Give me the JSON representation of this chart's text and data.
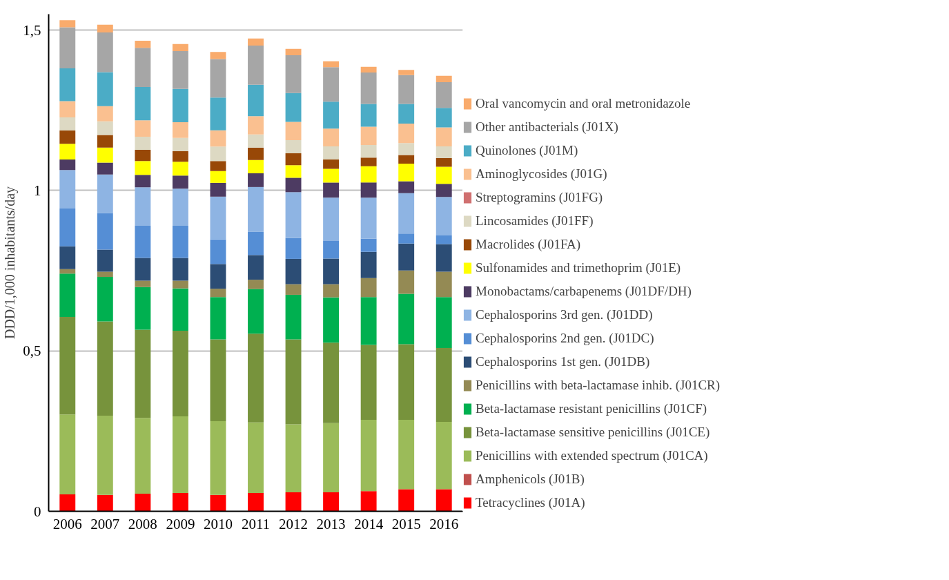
{
  "chart_data": {
    "type": "bar",
    "stacked": true,
    "ylabel": "DDD/1,000 inhabitants/day",
    "categories": [
      "2006",
      "2007",
      "2008",
      "2009",
      "2010",
      "2011",
      "2012",
      "2013",
      "2014",
      "2015",
      "2016"
    ],
    "ylim": [
      0,
      1.55
    ],
    "yticks": [
      {
        "value": 0,
        "label": "0"
      },
      {
        "value": 0.5,
        "label": "0,5"
      },
      {
        "value": 1,
        "label": "1"
      },
      {
        "value": 1.5,
        "label": "1,5"
      }
    ],
    "grid": "y",
    "legend": "right",
    "series": [
      {
        "name": "Tetracyclines (J01A)",
        "color": "#ff0000",
        "values": [
          0.053,
          0.051,
          0.055,
          0.057,
          0.051,
          0.057,
          0.059,
          0.059,
          0.063,
          0.069,
          0.069
        ]
      },
      {
        "name": "Amphenicols (J01B)",
        "color": "#c0504d",
        "values": [
          0,
          0,
          0,
          0,
          0,
          0,
          0,
          0,
          0,
          0,
          0
        ]
      },
      {
        "name": "Penicillins with extended spectrum (J01CA)",
        "color": "#9bbb59",
        "values": [
          0.249,
          0.247,
          0.236,
          0.239,
          0.23,
          0.22,
          0.212,
          0.216,
          0.222,
          0.216,
          0.21
        ]
      },
      {
        "name": "Beta-lactamase sensitive penicillins (J01CE)",
        "color": "#77933c",
        "values": [
          0.304,
          0.294,
          0.275,
          0.267,
          0.255,
          0.277,
          0.265,
          0.251,
          0.234,
          0.236,
          0.23
        ]
      },
      {
        "name": "Beta-lactamase resistant penicillins (J01CF)",
        "color": "#00b050",
        "values": [
          0.135,
          0.139,
          0.133,
          0.132,
          0.132,
          0.139,
          0.139,
          0.141,
          0.149,
          0.157,
          0.159
        ]
      },
      {
        "name": "Penicillins with beta-lactamase inhib. (J01CR)",
        "color": "#948a54",
        "values": [
          0.014,
          0.016,
          0.02,
          0.024,
          0.026,
          0.029,
          0.033,
          0.041,
          0.059,
          0.073,
          0.079
        ]
      },
      {
        "name": "Cephalosporins 1st gen. (J01DB)",
        "color": "#2c4d75",
        "values": [
          0.071,
          0.069,
          0.071,
          0.071,
          0.077,
          0.077,
          0.079,
          0.08,
          0.082,
          0.084,
          0.086
        ]
      },
      {
        "name": "Cephalosporins 2nd gen. (J01DC)",
        "color": "#558ed5",
        "values": [
          0.118,
          0.114,
          0.1,
          0.1,
          0.077,
          0.073,
          0.065,
          0.055,
          0.041,
          0.031,
          0.027
        ]
      },
      {
        "name": "Cephalosporins 3rd gen. (J01DD)",
        "color": "#8eb4e3",
        "values": [
          0.12,
          0.12,
          0.12,
          0.116,
          0.133,
          0.139,
          0.143,
          0.135,
          0.128,
          0.126,
          0.12
        ]
      },
      {
        "name": "Monobactams/carbapenems (J01DF/DH)",
        "color": "#4d3b62",
        "values": [
          0.033,
          0.037,
          0.039,
          0.041,
          0.043,
          0.043,
          0.045,
          0.047,
          0.047,
          0.037,
          0.041
        ]
      },
      {
        "name": "Sulfonamides and trimethoprim (J01E)",
        "color": "#ffff00",
        "values": [
          0.049,
          0.047,
          0.043,
          0.043,
          0.037,
          0.041,
          0.039,
          0.043,
          0.051,
          0.055,
          0.053
        ]
      },
      {
        "name": "Macrolides (J01FA)",
        "color": "#984807",
        "values": [
          0.041,
          0.039,
          0.035,
          0.033,
          0.031,
          0.039,
          0.037,
          0.029,
          0.027,
          0.027,
          0.027
        ]
      },
      {
        "name": "Lincosamides (J01FF)",
        "color": "#ddd9c3",
        "values": [
          0.041,
          0.043,
          0.041,
          0.041,
          0.045,
          0.041,
          0.041,
          0.041,
          0.039,
          0.037,
          0.037
        ]
      },
      {
        "name": "Streptogramins (J01FG)",
        "color": "#d07070",
        "values": [
          0,
          0,
          0,
          0,
          0,
          0,
          0,
          0,
          0,
          0,
          0
        ]
      },
      {
        "name": "Aminoglycosides (J01G)",
        "color": "#fac090",
        "values": [
          0.051,
          0.047,
          0.051,
          0.049,
          0.051,
          0.057,
          0.057,
          0.055,
          0.057,
          0.061,
          0.059
        ]
      },
      {
        "name": "Quinolones (J01M)",
        "color": "#4bacc6",
        "values": [
          0.102,
          0.106,
          0.104,
          0.104,
          0.102,
          0.098,
          0.09,
          0.084,
          0.071,
          0.061,
          0.061
        ]
      },
      {
        "name": "Other antibacterials (J01X)",
        "color": "#a6a6a6",
        "values": [
          0.128,
          0.124,
          0.122,
          0.118,
          0.12,
          0.122,
          0.118,
          0.108,
          0.098,
          0.09,
          0.08
        ]
      },
      {
        "name": "Oral vancomycin and oral metronidazole",
        "color": "#f9ab6c",
        "values": [
          0.022,
          0.024,
          0.022,
          0.022,
          0.022,
          0.022,
          0.02,
          0.018,
          0.018,
          0.016,
          0.02
        ]
      }
    ]
  }
}
